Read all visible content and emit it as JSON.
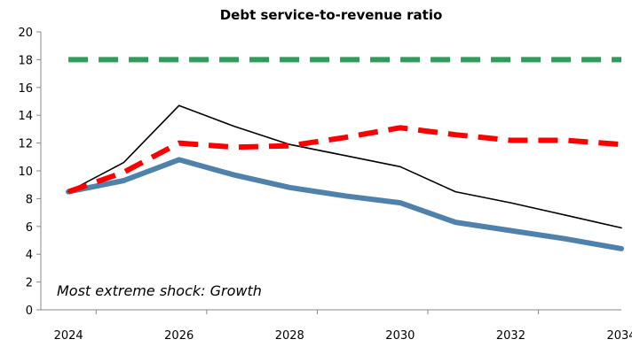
{
  "chart_data": {
    "type": "line",
    "title": "Debt service-to-revenue  ratio",
    "xlabel": "",
    "ylabel": "",
    "xlim": [
      2024,
      2034
    ],
    "ylim": [
      0,
      20
    ],
    "x_ticks": [
      "2024",
      "2026",
      "2028",
      "2030",
      "2032",
      "2034"
    ],
    "y_ticks": [
      "0",
      "2",
      "4",
      "6",
      "8",
      "10",
      "12",
      "14",
      "16",
      "18",
      "20"
    ],
    "grid": false,
    "legend": "none",
    "annotation": "Most extreme shock: Growth",
    "x": [
      2024,
      2025,
      2026,
      2027,
      2028,
      2029,
      2030,
      2031,
      2032,
      2033,
      2034
    ],
    "series": [
      {
        "values": [
          8.5,
          9.3,
          10.8,
          9.7,
          8.8,
          8.2,
          7.7,
          6.3,
          5.7,
          5.1,
          4.4
        ],
        "color": "#4f81ad",
        "style": "solid-thick"
      },
      {
        "values": [
          8.5,
          10.6,
          14.7,
          13.2,
          11.9,
          11.1,
          10.3,
          8.5,
          7.7,
          6.8,
          5.9
        ],
        "color": "#000000",
        "style": "solid-thin"
      },
      {
        "values": [
          8.5,
          9.9,
          12.0,
          11.7,
          11.8,
          12.4,
          13.1,
          12.6,
          12.2,
          12.2,
          11.9
        ],
        "color": "#ff0000",
        "style": "dashed-thick"
      },
      {
        "values": [
          18,
          18,
          18,
          18,
          18,
          18,
          18,
          18,
          18,
          18,
          18
        ],
        "color": "#2e9c5b",
        "style": "dashed-thick"
      }
    ]
  }
}
